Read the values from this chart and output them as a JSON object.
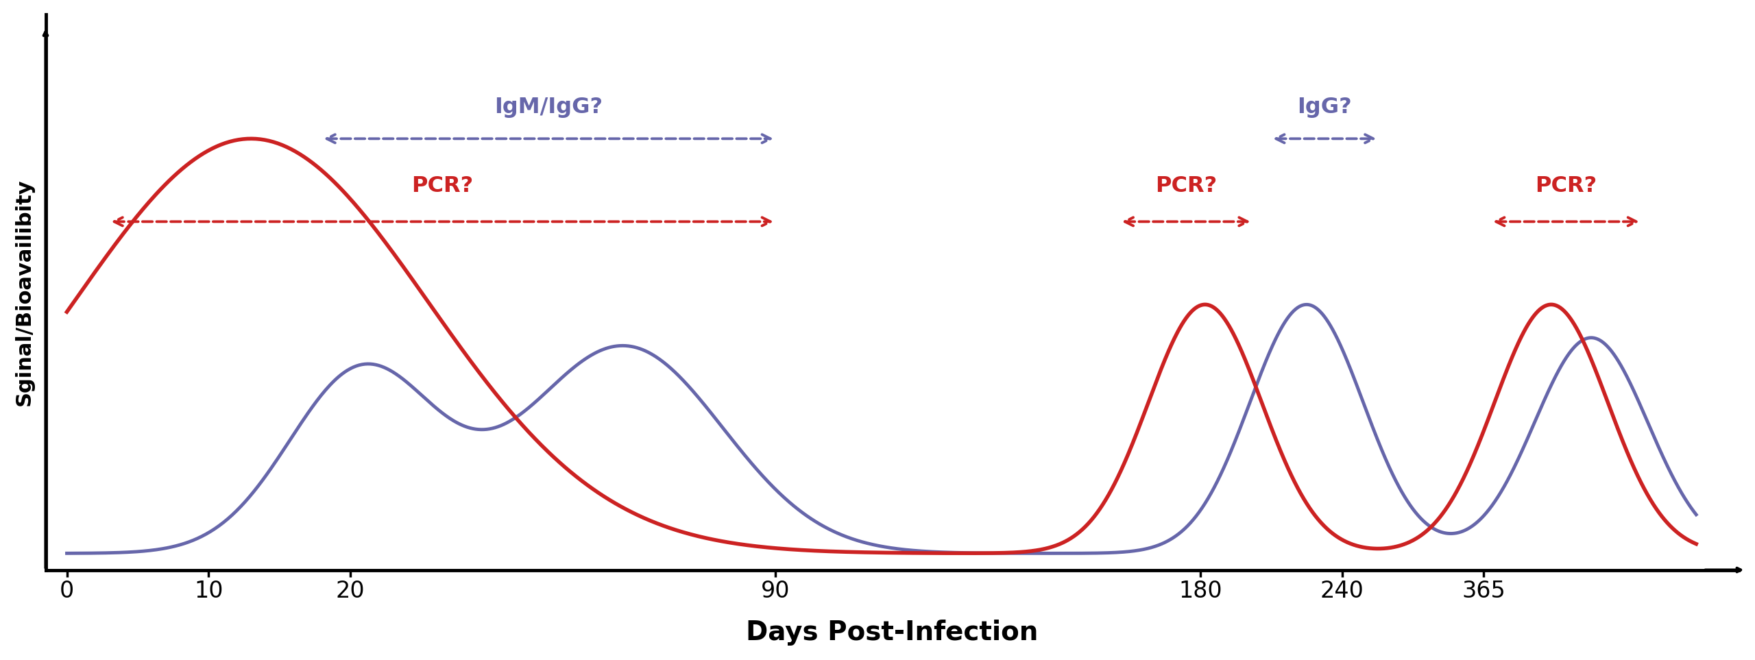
{
  "xlabel": "Days Post-Infection",
  "ylabel": "Sginal/Bioavailibity",
  "red_color": "#CC2222",
  "blue_color": "#6666AA",
  "tick_days": [
    0,
    10,
    20,
    90,
    180,
    240,
    365
  ],
  "tick_labels": [
    "0",
    "10",
    "20",
    "90",
    "180",
    "240",
    "365"
  ],
  "ticks_days_map": [
    0,
    10,
    20,
    90,
    180,
    240,
    365,
    450
  ],
  "ticks_lin_map": [
    0,
    1,
    2,
    5,
    8,
    9,
    10,
    11.5
  ],
  "pcr_label": "PCR?",
  "igm_label": "IgM/IgG?",
  "igg_label": "IgG?",
  "pcr2_label": "PCR?",
  "pcr3_label": "PCR?"
}
